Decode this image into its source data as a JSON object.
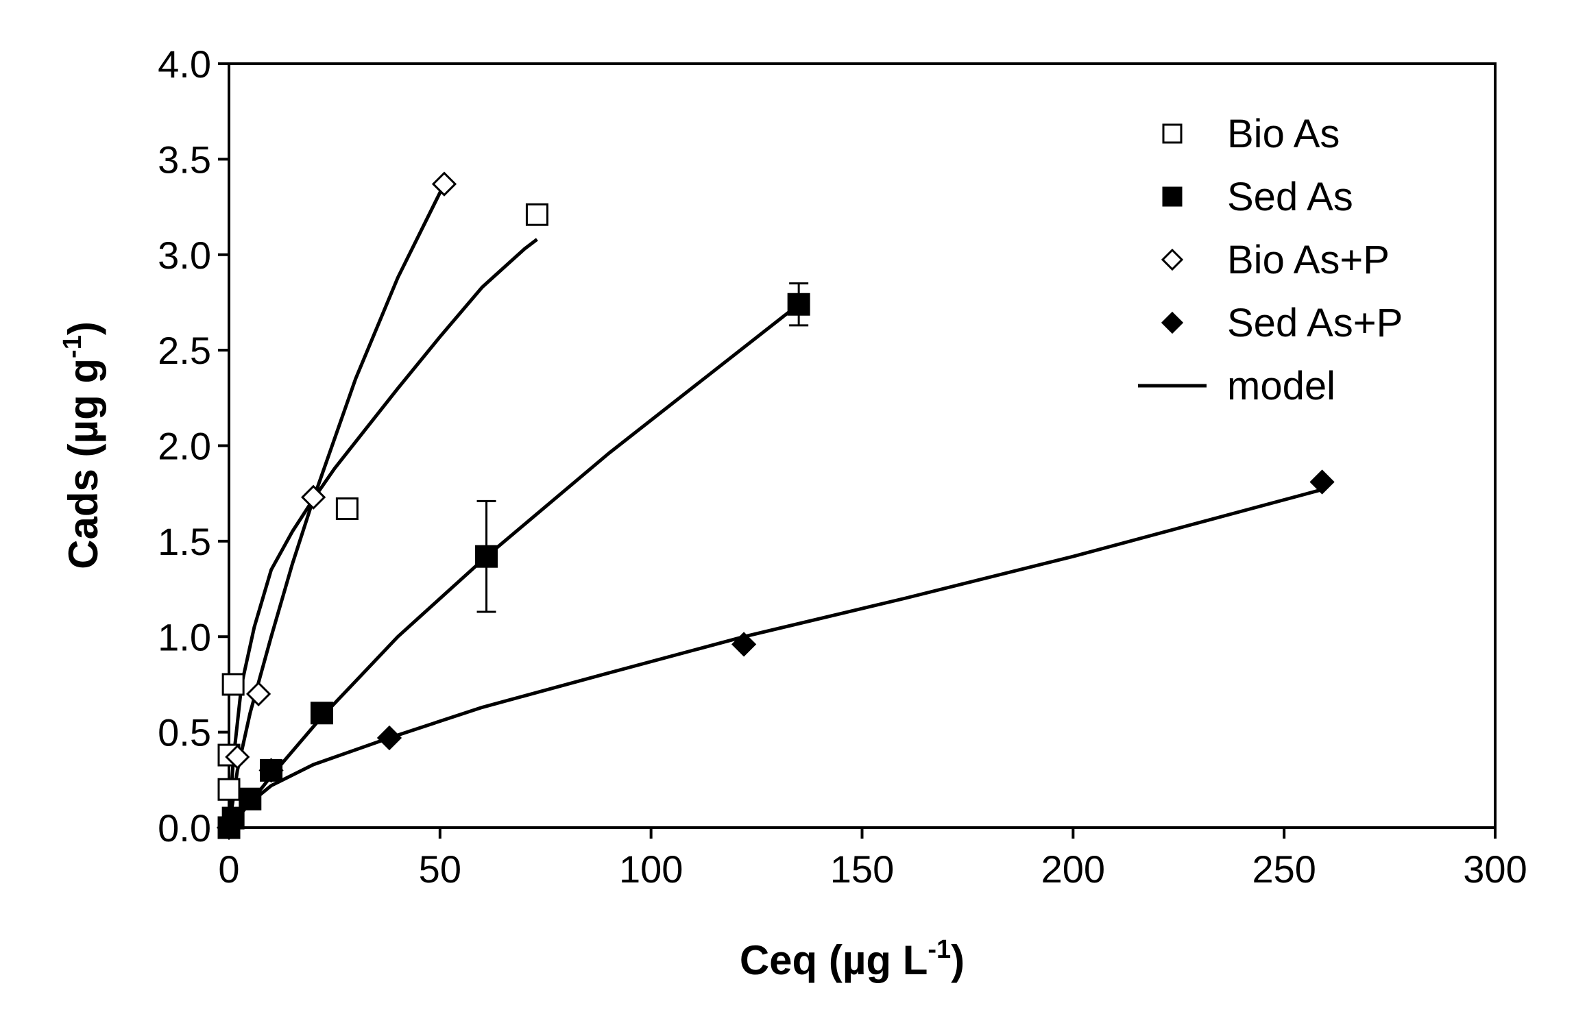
{
  "chart_data": {
    "type": "scatter",
    "title": "",
    "xlabel": "Ceq (µg L",
    "xlabel_sup": "-1",
    "xlabel_close": ")",
    "ylabel": "Cads (µg g",
    "ylabel_sup": "-1",
    "ylabel_close": ")",
    "xlim": [
      0,
      300
    ],
    "ylim": [
      0,
      4.0
    ],
    "xticks": [
      0,
      50,
      100,
      150,
      200,
      250,
      300
    ],
    "xtick_labels": [
      "0",
      "50",
      "100",
      "150",
      "200",
      "250",
      "300"
    ],
    "yticks": [
      0,
      0.5,
      1.0,
      1.5,
      2.0,
      2.5,
      3.0,
      3.5,
      4.0
    ],
    "ytick_labels": [
      "0.0",
      "0.5",
      "1.0",
      "1.5",
      "2.0",
      "2.5",
      "3.0",
      "3.5",
      "4.0"
    ],
    "grid": false,
    "legend_position": "top-right",
    "series": [
      {
        "name": "Bio As",
        "marker": "square-open",
        "x": [
          0,
          0,
          1,
          28,
          73
        ],
        "y": [
          0.2,
          0.38,
          0.75,
          1.67,
          3.21
        ]
      },
      {
        "name": "Sed As",
        "marker": "square-filled",
        "x": [
          0,
          1,
          5,
          10,
          22,
          61,
          135
        ],
        "y": [
          0.0,
          0.05,
          0.15,
          0.3,
          0.6,
          1.42,
          2.74
        ],
        "error": [
          0,
          0,
          0,
          0,
          0,
          0.29,
          0.11
        ]
      },
      {
        "name": "Bio As+P",
        "marker": "diamond-open",
        "x": [
          2,
          7,
          20,
          51
        ],
        "y": [
          0.37,
          0.7,
          1.73,
          3.37
        ]
      },
      {
        "name": "Sed As+P",
        "marker": "diamond-filled",
        "x": [
          0,
          10,
          38,
          122,
          259
        ],
        "y": [
          0.0,
          0.3,
          0.47,
          0.96,
          1.81
        ]
      }
    ],
    "model_curves": [
      {
        "for": "Bio As",
        "x": [
          0,
          1,
          3,
          6,
          10,
          15,
          20,
          25,
          30,
          40,
          50,
          60,
          70,
          73
        ],
        "y": [
          0,
          0.35,
          0.75,
          1.05,
          1.35,
          1.55,
          1.72,
          1.88,
          2.02,
          2.3,
          2.57,
          2.83,
          3.03,
          3.08
        ]
      },
      {
        "for": "Bio As+P",
        "x": [
          0,
          2,
          5,
          10,
          15,
          20,
          30,
          40,
          51
        ],
        "y": [
          0,
          0.3,
          0.6,
          1.0,
          1.38,
          1.72,
          2.35,
          2.88,
          3.37
        ]
      },
      {
        "for": "Sed As",
        "x": [
          0,
          5,
          10,
          22,
          40,
          61,
          90,
          135
        ],
        "y": [
          0,
          0.13,
          0.27,
          0.58,
          1.0,
          1.42,
          1.96,
          2.74
        ]
      },
      {
        "for": "Sed As+P",
        "x": [
          0,
          5,
          10,
          20,
          38,
          60,
          90,
          122,
          160,
          200,
          259
        ],
        "y": [
          0,
          0.13,
          0.22,
          0.33,
          0.47,
          0.63,
          0.81,
          1.0,
          1.2,
          1.42,
          1.77
        ]
      }
    ],
    "legend": [
      {
        "label": "Bio As",
        "marker": "square-open"
      },
      {
        "label": "Sed As",
        "marker": "square-filled"
      },
      {
        "label": "Bio As+P",
        "marker": "diamond-open"
      },
      {
        "label": "Sed As+P",
        "marker": "diamond-filled"
      },
      {
        "label": "model",
        "marker": "line"
      }
    ]
  }
}
